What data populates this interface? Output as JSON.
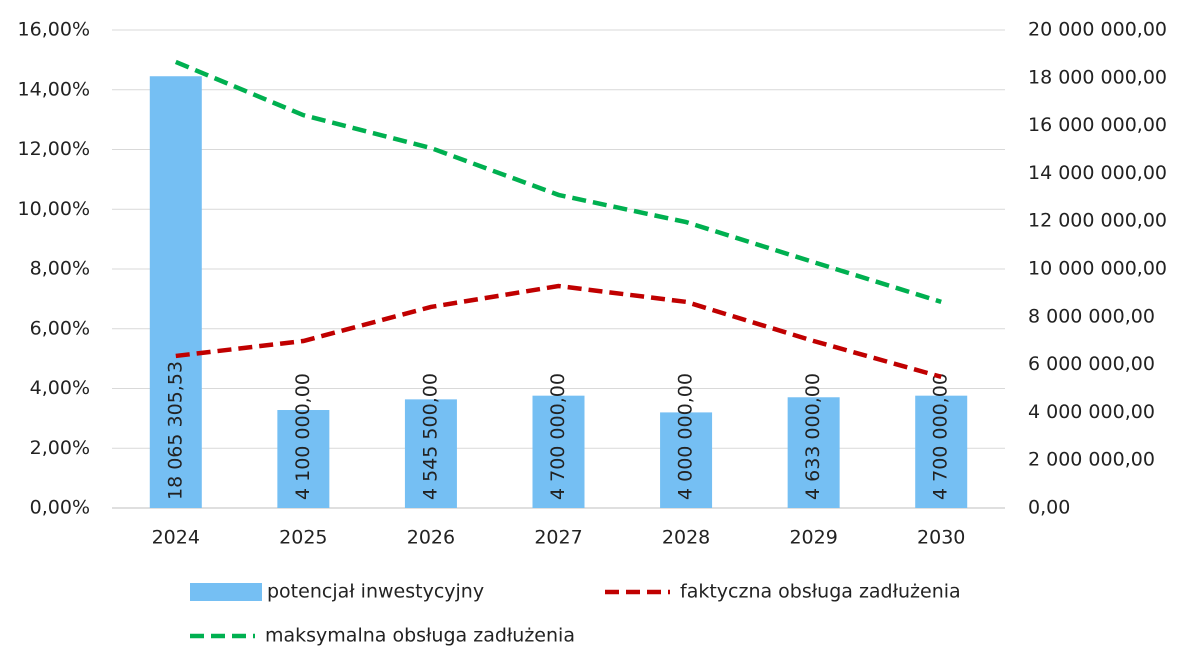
{
  "chart_data": {
    "type": "bar",
    "categories": [
      "2024",
      "2025",
      "2026",
      "2027",
      "2028",
      "2029",
      "2030"
    ],
    "series": [
      {
        "name": "potencjał inwestycyjny",
        "type": "bar",
        "axis": "y2",
        "color": "#75bff3",
        "values": [
          18065305.53,
          4100000,
          4545500,
          4700000,
          4000000,
          4633000,
          4700000
        ],
        "value_labels": [
          "18 065 305,53",
          "4 100 000,00",
          "4 545 500,00",
          "4 700 000,00",
          "4 000 000,00",
          "4 633 000,00",
          "4 700 000,00"
        ]
      },
      {
        "name": "faktyczna obsługa zadłużenia",
        "type": "line",
        "color": "#c00000",
        "values": [
          5.09,
          5.59,
          6.73,
          7.43,
          6.9,
          5.59,
          4.39
        ]
      },
      {
        "name": "maksymalna obsługa zadłużenia",
        "type": "line",
        "color": "#00b050",
        "values": [
          14.93,
          13.15,
          12.05,
          10.48,
          9.57,
          8.23,
          6.9
        ]
      }
    ],
    "ylim": [
      0,
      16
    ],
    "yticks": [
      {
        "value": 0,
        "label": "0,00%"
      },
      {
        "value": 2,
        "label": "2,00%"
      },
      {
        "value": 4,
        "label": "4,00%"
      },
      {
        "value": 6,
        "label": "6,00%"
      },
      {
        "value": 8,
        "label": "8,00%"
      },
      {
        "value": 10,
        "label": "10,00%"
      },
      {
        "value": 12,
        "label": "12,00%"
      },
      {
        "value": 14,
        "label": "14,00%"
      },
      {
        "value": 16,
        "label": "16,00%"
      }
    ],
    "y2lim": [
      0,
      20000000
    ],
    "y2ticks": [
      {
        "value": 0,
        "label": "0,00"
      },
      {
        "value": 2000000,
        "label": "2 000 000,00"
      },
      {
        "value": 4000000,
        "label": "4 000 000,00"
      },
      {
        "value": 6000000,
        "label": "6 000 000,00"
      },
      {
        "value": 8000000,
        "label": "8 000 000,00"
      },
      {
        "value": 10000000,
        "label": "10 000 000,00"
      },
      {
        "value": 12000000,
        "label": "12 000 000,00"
      },
      {
        "value": 14000000,
        "label": "14 000 000,00"
      },
      {
        "value": 16000000,
        "label": "16 000 000,00"
      },
      {
        "value": 18000000,
        "label": "18 000 000,00"
      },
      {
        "value": 20000000,
        "label": "20 000 000,00"
      }
    ],
    "grid": true,
    "legend": "bottom"
  }
}
